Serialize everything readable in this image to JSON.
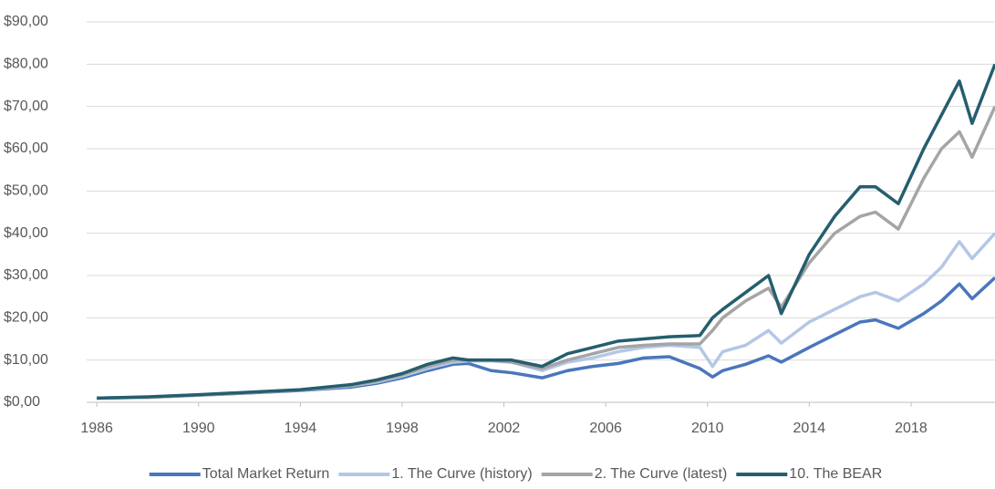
{
  "chart_data": {
    "type": "line",
    "x": [
      1986,
      1988,
      1990,
      1992,
      1994,
      1996,
      1997,
      1998,
      1999,
      2000,
      2000.6,
      2001.5,
      2002.3,
      2003.5,
      2004.5,
      2005.5,
      2006.5,
      2007.5,
      2008.5,
      2009.7,
      2010.2,
      2010.6,
      2011.5,
      2012.4,
      2012.9,
      2014,
      2015,
      2016,
      2016.6,
      2017.5,
      2018.5,
      2019.2,
      2019.9,
      2020.4,
      2021.3
    ],
    "series": [
      {
        "name": "Total Market Return",
        "color": "#4a76bd",
        "values": [
          1,
          1.2,
          1.7,
          2.2,
          2.8,
          3.6,
          4.5,
          5.8,
          7.5,
          9,
          9.2,
          7.5,
          7,
          5.8,
          7.5,
          8.5,
          9.2,
          10.5,
          10.8,
          8,
          6,
          7.5,
          9,
          11,
          9.5,
          13,
          16,
          19,
          19.5,
          17.5,
          21,
          24,
          28,
          24.5,
          29.5
        ]
      },
      {
        "name": "1. The Curve (history)",
        "color": "#b4c7e7",
        "values": [
          1,
          1.2,
          1.7,
          2.3,
          2.9,
          3.9,
          4.8,
          6.2,
          8,
          9.5,
          9.8,
          9.8,
          9.5,
          7.5,
          9.5,
          10.5,
          12,
          13,
          13.5,
          13,
          8.5,
          12,
          13.5,
          17,
          14,
          19,
          22,
          25,
          26,
          24,
          28,
          32,
          38,
          34,
          40
        ]
      },
      {
        "name": "2. The Curve (latest)",
        "color": "#a5a5a5",
        "values": [
          1,
          1.2,
          1.7,
          2.3,
          2.9,
          4,
          5,
          6.5,
          8.5,
          10,
          10,
          10,
          9.5,
          8,
          10,
          11.5,
          13,
          13.5,
          13.8,
          13.8,
          17,
          20,
          24,
          27,
          22.5,
          33,
          40,
          44,
          45,
          41,
          53,
          60,
          64,
          58,
          70
        ]
      },
      {
        "name": "10. The BEAR",
        "color": "#255e6e",
        "values": [
          1,
          1.3,
          1.8,
          2.4,
          3,
          4.2,
          5.3,
          6.8,
          9,
          10.5,
          10,
          10,
          10,
          8.5,
          11.5,
          13,
          14.5,
          15,
          15.5,
          15.8,
          20,
          22,
          26,
          30,
          21,
          35,
          44,
          51,
          51,
          47,
          60,
          68,
          76,
          66,
          80
        ]
      }
    ],
    "xlim": [
      1985.6,
      2021.3
    ],
    "xticks": [
      1986,
      1990,
      1994,
      1998,
      2002,
      2006,
      2010,
      2014,
      2018
    ],
    "ylim": [
      0,
      90
    ],
    "yticks": [
      {
        "value": 0,
        "label": "$0,00"
      },
      {
        "value": 10,
        "label": "$10,00"
      },
      {
        "value": 20,
        "label": "$20,00"
      },
      {
        "value": 30,
        "label": "$30,00"
      },
      {
        "value": 40,
        "label": "$40,00"
      },
      {
        "value": 50,
        "label": "$50,00"
      },
      {
        "value": 60,
        "label": "$60,00"
      },
      {
        "value": 70,
        "label": "$70,00"
      },
      {
        "value": 80,
        "label": "$80,00"
      },
      {
        "value": 90,
        "label": "$90,00"
      }
    ],
    "grid": true,
    "legend": "bottom"
  }
}
